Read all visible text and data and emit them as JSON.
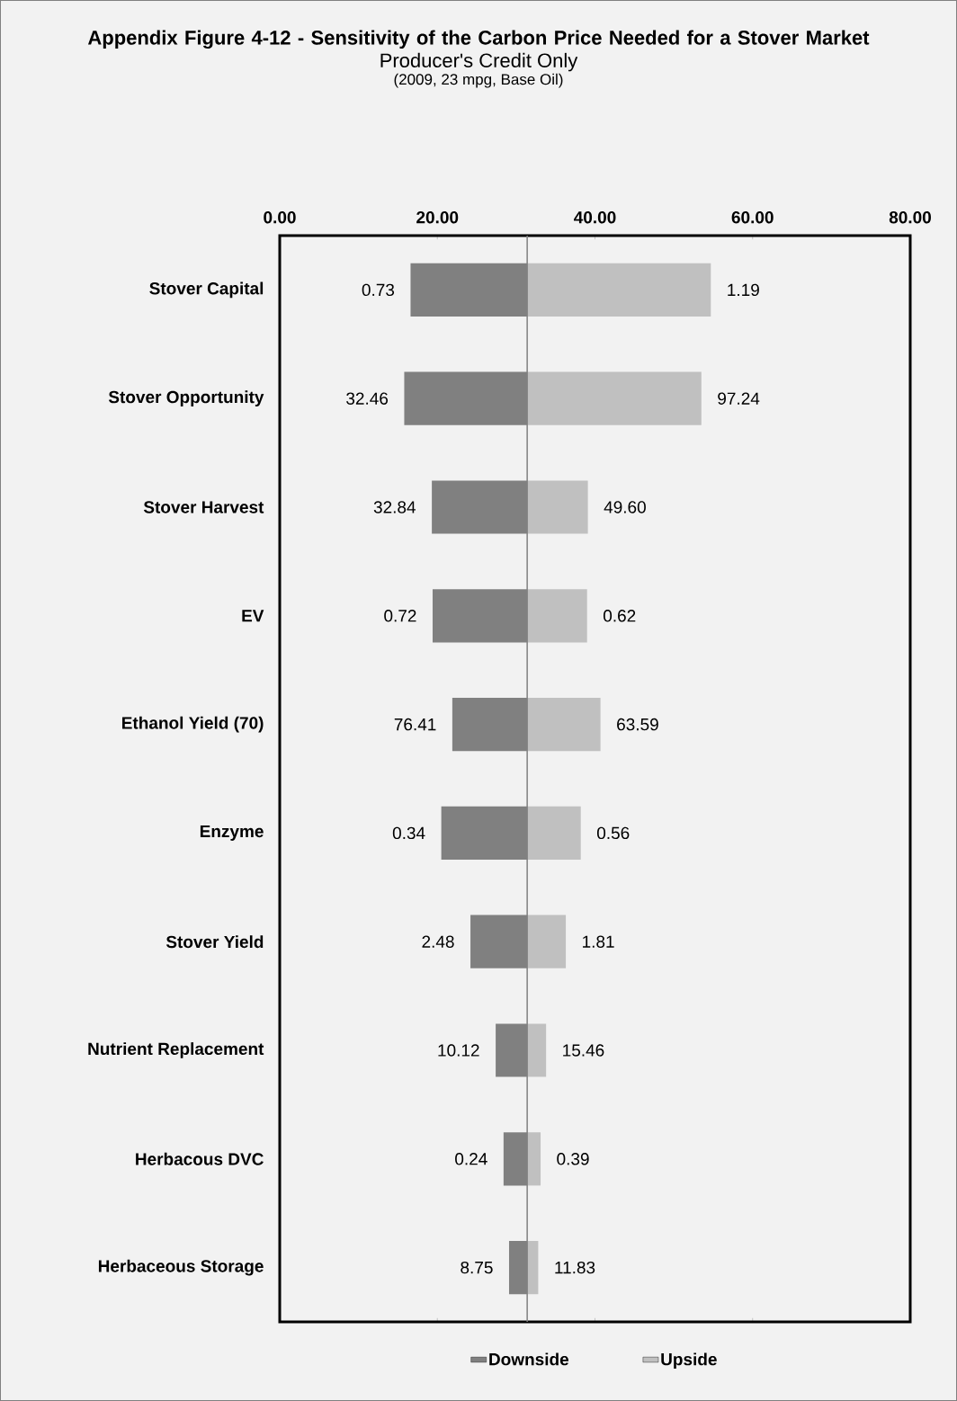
{
  "chart_data": {
    "type": "bar",
    "orientation": "horizontal",
    "title": "Appendix Figure 4-12 - Sensitivity of the Carbon Price Needed for a Stover Market",
    "subtitle": "Producer's Credit Only",
    "annotations": [
      "(2009, 23 mpg, Base Oil)",
      {
        "text": "0.73",
        "x": 16.6,
        "y": "Stover Capital"
      },
      {
        "text": "32.46",
        "x": 15.8,
        "y": "Stover Opportunity"
      },
      {
        "text": "32.84",
        "x": 19.3,
        "y": "Stover Harvest"
      },
      {
        "text": "0.72",
        "x": 19.4,
        "y": "EV"
      },
      {
        "text": "76.41",
        "x": 21.9,
        "y": "Ethanol Yield (70)"
      },
      {
        "text": "0.34",
        "x": 20.5,
        "y": "Enzyme"
      },
      {
        "text": "2.48",
        "x": 24.2,
        "y": "Stover Yield"
      },
      {
        "text": "10.12",
        "x": 27.4,
        "y": "Nutrient Replacement"
      },
      {
        "text": "0.24",
        "x": 28.4,
        "y": "Herbacous DVC"
      },
      {
        "text": "8.75",
        "x": 29.1,
        "y": "Herbaceous Storage"
      },
      {
        "text": "1.19",
        "x": 54.7,
        "y": "Stover Capital"
      },
      {
        "text": "97.24",
        "x": 53.5,
        "y": "Stover Opportunity"
      },
      {
        "text": "49.60",
        "x": 39.1,
        "y": "Stover Harvest"
      },
      {
        "text": "0.62",
        "x": 39.0,
        "y": "EV"
      },
      {
        "text": "63.59",
        "x": 40.7,
        "y": "Ethanol Yield (70)"
      },
      {
        "text": "0.56",
        "x": 38.2,
        "y": "Enzyme"
      },
      {
        "text": "1.81",
        "x": 36.3,
        "y": "Stover Yield"
      },
      {
        "text": "15.46",
        "x": 33.8,
        "y": "Nutrient Replacement"
      },
      {
        "text": "0.39",
        "x": 33.1,
        "y": "Herbacous DVC"
      },
      {
        "text": "11.83",
        "x": 32.8,
        "y": "Herbaceous Storage"
      }
    ],
    "categories": [
      "Stover Capital",
      "Stover Opportunity",
      "Stover Harvest",
      "EV",
      "Ethanol Yield (70)",
      "Enzyme",
      "Stover Yield",
      "Nutrient Replacement",
      "Herbacous DVC",
      "Herbaceous Storage"
    ],
    "xlim": [
      0,
      80
    ],
    "xticks": [
      {
        "value": 0,
        "label": "0.00"
      },
      {
        "value": 20,
        "label": "20.00"
      },
      {
        "value": 40,
        "label": "40.00"
      },
      {
        "value": 60,
        "label": "60.00"
      },
      {
        "value": 80,
        "label": "80.00"
      }
    ],
    "legend": "bottom",
    "ref_lines": [
      {
        "axis": "x",
        "value": 31.4,
        "color": "#808080"
      }
    ],
    "series": [
      {
        "name": "Downside",
        "color": "#808080",
        "base": [
          16.6,
          15.8,
          19.3,
          19.4,
          21.9,
          20.5,
          24.2,
          27.4,
          28.4,
          29.1
        ],
        "values": [
          14.8,
          15.6,
          12.1,
          12.0,
          9.5,
          10.9,
          7.2,
          4.0,
          3.0,
          2.3
        ]
      },
      {
        "name": "Upside",
        "color": "#c0c0c0",
        "base": [
          31.4,
          31.4,
          31.4,
          31.4,
          31.4,
          31.4,
          31.4,
          31.4,
          31.4,
          31.4
        ],
        "values": [
          23.3,
          22.1,
          7.7,
          7.6,
          9.3,
          6.8,
          4.9,
          2.4,
          1.7,
          1.4
        ]
      }
    ]
  }
}
